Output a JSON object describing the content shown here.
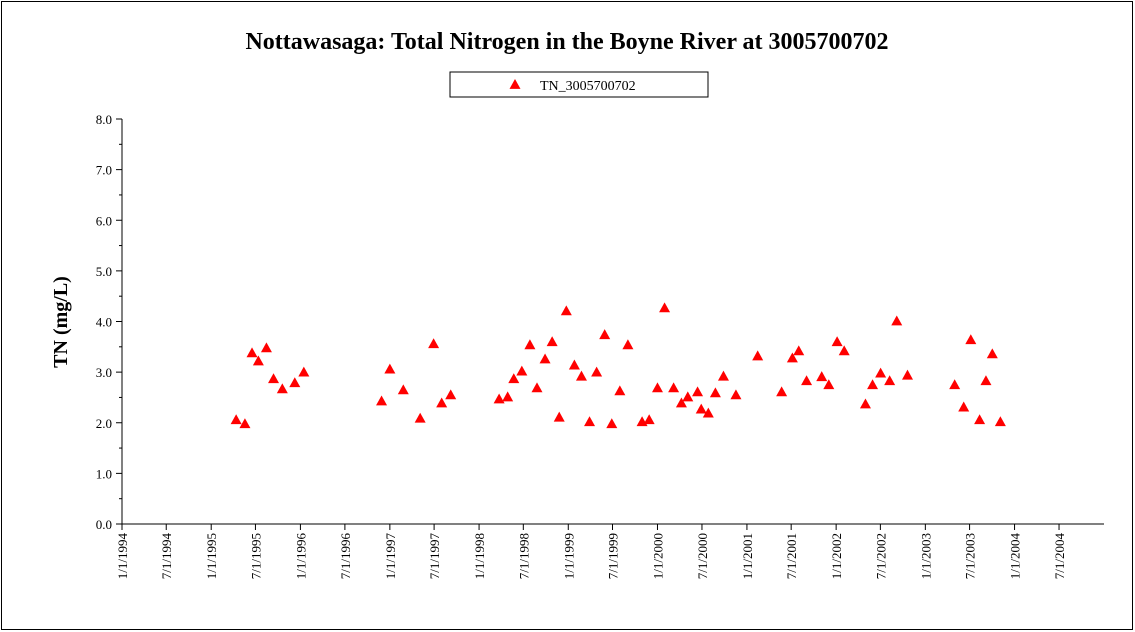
{
  "chart_data": {
    "type": "scatter",
    "title": "Nottawasaga: Total Nitrogen in the Boyne River at 3005700702",
    "y_label": "TN (mg/L)",
    "legend": "top",
    "xlim": [
      "1994-01-01",
      "2005-01-01"
    ],
    "xticks": [
      {
        "value": "1994-01-01",
        "label": "1/1/1994"
      },
      {
        "value": "1994-07-01",
        "label": "7/1/1994"
      },
      {
        "value": "1995-01-01",
        "label": "1/1/1995"
      },
      {
        "value": "1995-07-01",
        "label": "7/1/1995"
      },
      {
        "value": "1996-01-01",
        "label": "1/1/1996"
      },
      {
        "value": "1996-07-01",
        "label": "7/1/1996"
      },
      {
        "value": "1997-01-01",
        "label": "1/1/1997"
      },
      {
        "value": "1997-07-01",
        "label": "7/1/1997"
      },
      {
        "value": "1998-01-01",
        "label": "1/1/1998"
      },
      {
        "value": "1998-07-01",
        "label": "7/1/1998"
      },
      {
        "value": "1999-01-01",
        "label": "1/1/1999"
      },
      {
        "value": "1999-07-01",
        "label": "7/1/1999"
      },
      {
        "value": "2000-01-01",
        "label": "1/1/2000"
      },
      {
        "value": "2000-07-01",
        "label": "7/1/2000"
      },
      {
        "value": "2001-01-01",
        "label": "1/1/2001"
      },
      {
        "value": "2001-07-01",
        "label": "7/1/2001"
      },
      {
        "value": "2002-01-01",
        "label": "1/1/2002"
      },
      {
        "value": "2002-07-01",
        "label": "7/1/2002"
      },
      {
        "value": "2003-01-01",
        "label": "1/1/2003"
      },
      {
        "value": "2003-07-01",
        "label": "7/1/2003"
      },
      {
        "value": "2004-01-01",
        "label": "1/1/2004"
      },
      {
        "value": "2004-07-01",
        "label": "7/1/2004"
      }
    ],
    "ylim": [
      0,
      8
    ],
    "yticks": [
      {
        "value": 0,
        "label": "0.0"
      },
      {
        "value": 1,
        "label": "1.0"
      },
      {
        "value": 2,
        "label": "2.0"
      },
      {
        "value": 3,
        "label": "3.0"
      },
      {
        "value": 4,
        "label": "4.0"
      },
      {
        "value": 5,
        "label": "5.0"
      },
      {
        "value": 6,
        "label": "6.0"
      },
      {
        "value": 7,
        "label": "7.0"
      },
      {
        "value": 8,
        "label": "8.0"
      }
    ],
    "series": [
      {
        "name": "TN_3005700702",
        "color": "#ff0000",
        "x": [
          "1995-04-13",
          "1995-05-19",
          "1995-06-17",
          "1995-07-13",
          "1995-08-15",
          "1995-09-13",
          "1995-10-19",
          "1995-12-09",
          "1996-01-15",
          "1996-11-28",
          "1997-01-01",
          "1997-02-25",
          "1997-05-05",
          "1997-06-29",
          "1997-08-01",
          "1997-09-07",
          "1998-03-24",
          "1998-04-28",
          "1998-05-23",
          "1998-06-25",
          "1998-07-28",
          "1998-08-26",
          "1998-09-28",
          "1998-10-27",
          "1998-11-25",
          "1998-12-24",
          "1999-01-26",
          "1999-02-24",
          "1999-03-29",
          "1999-04-27",
          "1999-05-30",
          "1999-06-28",
          "1999-07-31",
          "1999-09-02",
          "1999-10-30",
          "1999-11-28",
          "2000-01-01",
          "2000-01-30",
          "2000-03-07",
          "2000-04-08",
          "2000-05-04",
          "2000-06-13",
          "2000-06-28",
          "2000-07-27",
          "2000-08-25",
          "2000-09-27",
          "2000-11-17",
          "2001-02-14",
          "2001-05-23",
          "2001-07-06",
          "2001-08-01",
          "2001-09-02",
          "2001-11-03",
          "2001-12-02",
          "2002-01-05",
          "2002-02-03",
          "2002-05-01",
          "2002-05-30",
          "2002-07-02",
          "2002-08-08",
          "2002-09-06",
          "2002-10-20",
          "2003-05-01",
          "2003-06-07",
          "2003-07-06",
          "2003-08-11",
          "2003-09-06",
          "2003-10-02",
          "2003-11-04"
        ],
        "values": [
          2.06,
          1.98,
          3.38,
          3.22,
          3.48,
          2.87,
          2.67,
          2.79,
          3.0,
          2.43,
          3.06,
          2.65,
          2.09,
          3.56,
          2.39,
          2.55,
          2.47,
          2.51,
          2.87,
          3.02,
          3.54,
          2.69,
          3.26,
          3.6,
          2.11,
          4.21,
          3.14,
          2.92,
          2.02,
          3.0,
          3.74,
          1.98,
          2.63,
          3.54,
          2.02,
          2.06,
          2.69,
          4.27,
          2.69,
          2.39,
          2.51,
          2.61,
          2.27,
          2.19,
          2.59,
          2.92,
          2.55,
          3.32,
          2.61,
          3.28,
          3.42,
          2.83,
          2.91,
          2.75,
          3.6,
          3.42,
          2.37,
          2.75,
          2.98,
          2.83,
          4.01,
          2.94,
          2.75,
          2.31,
          3.64,
          2.06,
          2.83,
          3.36,
          2.02
        ]
      }
    ]
  }
}
